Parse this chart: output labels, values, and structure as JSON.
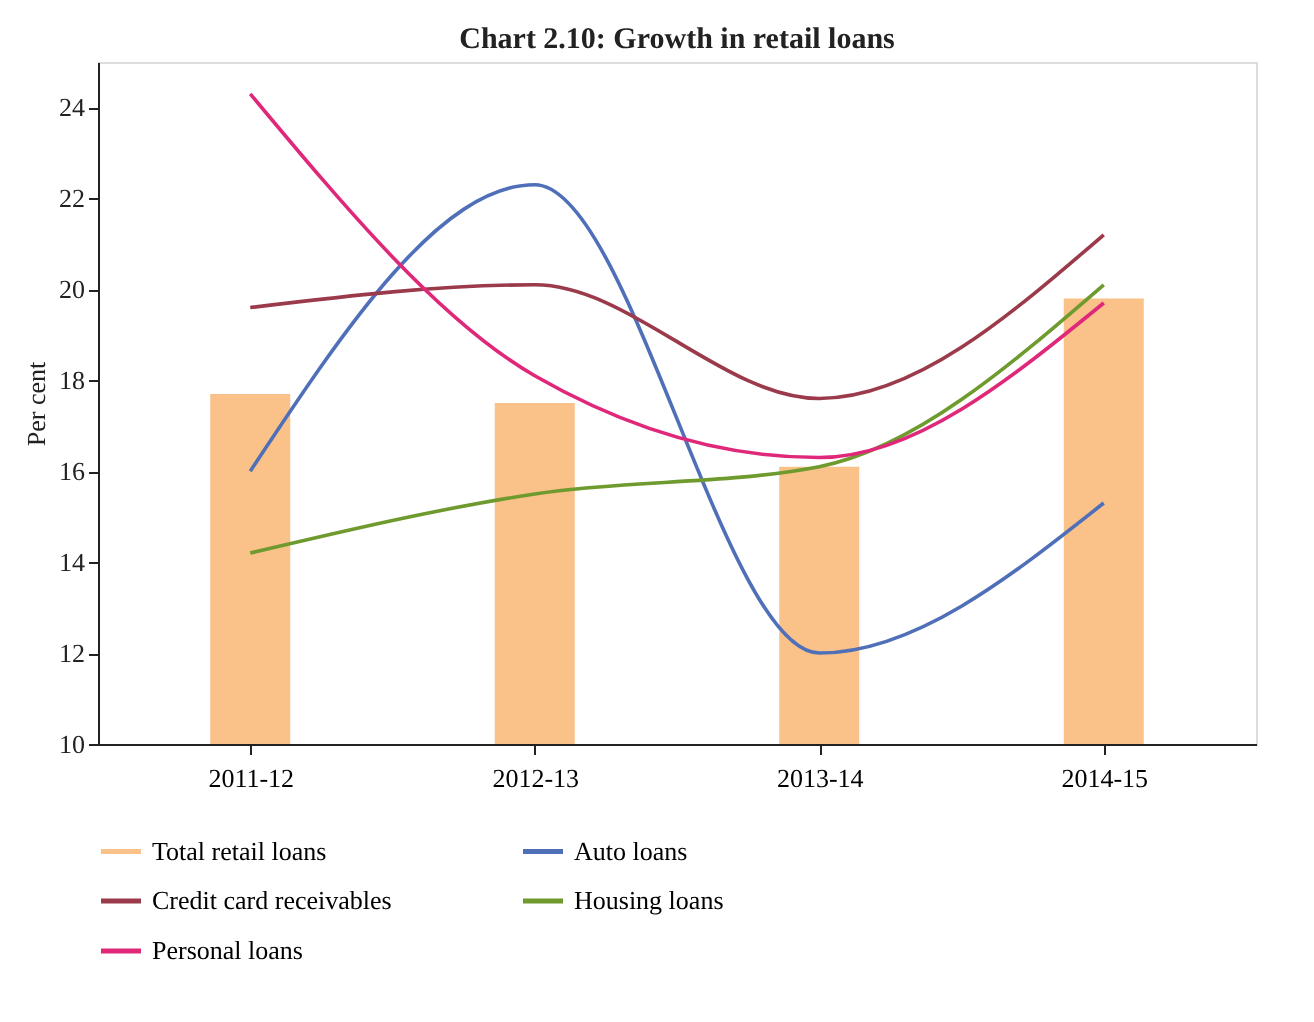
{
  "chart_data": {
    "type": "line",
    "title": "Chart 2.10: Growth in retail loans",
    "ylabel": "Per cent",
    "categories": [
      "2011-12",
      "2012-13",
      "2013-14",
      "2014-15"
    ],
    "series": [
      {
        "name": "Total retail loans",
        "type": "bar",
        "color": "#fac189",
        "values": [
          17.7,
          17.5,
          16.1,
          19.8
        ]
      },
      {
        "name": "Auto loans",
        "color": "#4f6fb8",
        "values": [
          16.0,
          22.3,
          12.0,
          15.3
        ]
      },
      {
        "name": "Credit card receivables",
        "color": "#9b3a4a",
        "values": [
          19.6,
          20.1,
          17.6,
          21.2
        ]
      },
      {
        "name": "Housing loans",
        "color": "#6e9a2e",
        "values": [
          14.2,
          15.5,
          16.1,
          20.1
        ]
      },
      {
        "name": "Personal loans",
        "color": "#e0287a",
        "values": [
          24.3,
          18.1,
          16.3,
          19.7
        ]
      }
    ],
    "ylim": [
      10,
      25
    ],
    "yticks": [
      10,
      12,
      14,
      16,
      18,
      20,
      22,
      24
    ],
    "grid": false,
    "legend": "bottom",
    "line_style": "solid",
    "marker": "none"
  }
}
